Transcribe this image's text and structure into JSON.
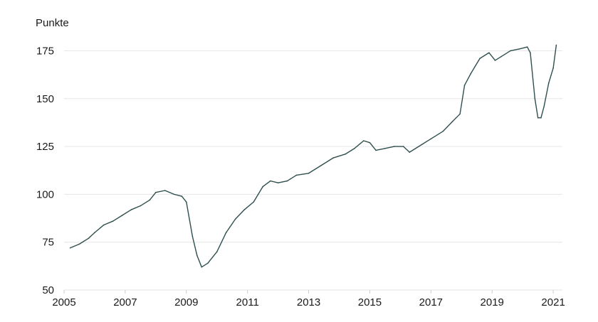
{
  "chart_data": {
    "type": "line",
    "title": "",
    "xlabel": "",
    "ylabel": "Punkte",
    "x_ticks": [
      "2005",
      "2007",
      "2009",
      "2011",
      "2013",
      "2015",
      "2017",
      "2019",
      "2021"
    ],
    "y_ticks": [
      "50",
      "75",
      "100",
      "125",
      "150",
      "175"
    ],
    "xlim": [
      2005.0,
      2021.3
    ],
    "ylim": [
      50,
      180
    ],
    "grid": "horizontal",
    "line_color": "#2f4f4f",
    "grid_color": "#e6e6e6",
    "x": [
      2005.2,
      2005.5,
      2005.8,
      2006.0,
      2006.3,
      2006.6,
      2006.9,
      2007.2,
      2007.5,
      2007.8,
      2008.0,
      2008.3,
      2008.6,
      2008.85,
      2009.0,
      2009.2,
      2009.35,
      2009.5,
      2009.7,
      2010.0,
      2010.3,
      2010.6,
      2010.9,
      2011.2,
      2011.5,
      2011.75,
      2012.0,
      2012.3,
      2012.6,
      2013.0,
      2013.4,
      2013.8,
      2014.2,
      2014.5,
      2014.8,
      2015.0,
      2015.2,
      2015.5,
      2015.8,
      2016.1,
      2016.3,
      2016.7,
      2017.0,
      2017.4,
      2017.7,
      2017.95,
      2018.1,
      2018.3,
      2018.6,
      2018.9,
      2019.1,
      2019.3,
      2019.6,
      2019.9,
      2020.15,
      2020.25,
      2020.4,
      2020.5,
      2020.6,
      2020.7,
      2020.85,
      2021.0,
      2021.1
    ],
    "y": [
      72,
      74,
      77,
      80,
      84,
      86,
      89,
      92,
      94,
      97,
      101,
      102,
      100,
      99,
      96,
      78,
      68,
      62,
      64,
      70,
      80,
      87,
      92,
      96,
      104,
      107,
      106,
      107,
      110,
      111,
      115,
      119,
      121,
      124,
      128,
      127,
      123,
      124,
      125,
      125,
      122,
      126,
      129,
      133,
      138,
      142,
      157,
      163,
      171,
      174,
      170,
      172,
      175,
      176,
      177,
      174,
      150,
      140,
      140,
      146,
      158,
      166,
      178
    ]
  }
}
